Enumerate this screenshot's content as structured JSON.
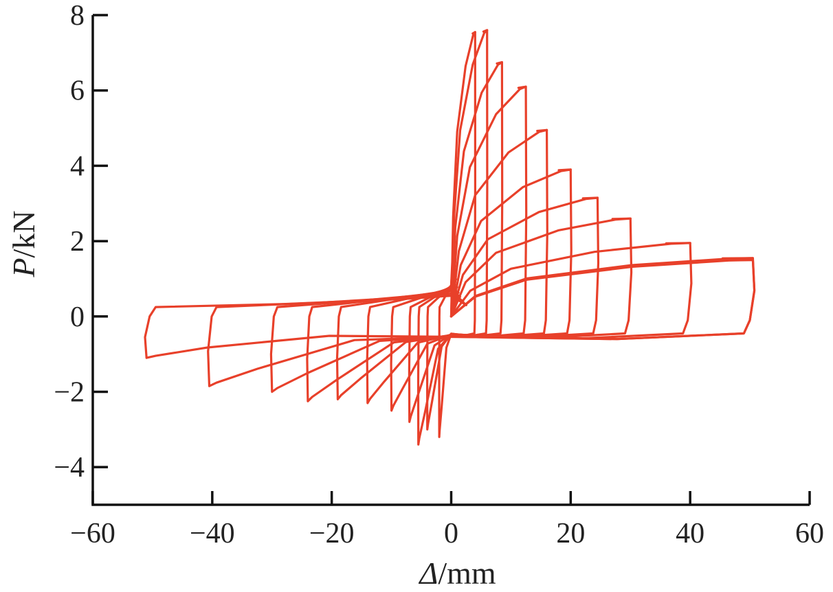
{
  "chart_data": {
    "type": "line",
    "xlabel_symbol": "Δ",
    "xlabel_unit": "/mm",
    "ylabel_symbol": "P",
    "ylabel_unit": "/kN",
    "xlim": [
      -60,
      60
    ],
    "ylim": [
      -5,
      8
    ],
    "xticks": [
      -60,
      -40,
      -20,
      0,
      20,
      40,
      60
    ],
    "yticks": [
      -4,
      -2,
      0,
      2,
      4,
      6,
      8
    ],
    "xtick_labels": [
      "−60",
      "−40",
      "−20",
      "0",
      "20",
      "40",
      "60"
    ],
    "ytick_labels": [
      "−4",
      "−2",
      "0",
      "2",
      "4",
      "6",
      "8"
    ],
    "grid": false,
    "legend": "none",
    "series": [
      {
        "color": "#e8402a",
        "description_of_shape": "cyclic hysteresis loops",
        "cycles": [
          {
            "dmax": 4.0,
            "pmax": 7.55,
            "dmin": -2.0,
            "pmin": -3.2
          },
          {
            "dmax": 6.0,
            "pmax": 7.6,
            "dmin": -4.0,
            "pmin": -3.0
          },
          {
            "dmax": 8.5,
            "pmax": 6.75,
            "dmin": -5.5,
            "pmin": -3.4
          },
          {
            "dmax": 12.5,
            "pmax": 6.1,
            "dmin": -7.0,
            "pmin": -2.8
          },
          {
            "dmax": 16.0,
            "pmax": 4.95,
            "dmin": -10.0,
            "pmin": -2.5
          },
          {
            "dmax": 20.0,
            "pmax": 3.9,
            "dmin": -14.0,
            "pmin": -2.3
          },
          {
            "dmax": 24.5,
            "pmax": 3.15,
            "dmin": -19.0,
            "pmin": -2.2
          },
          {
            "dmax": 30.0,
            "pmax": 2.6,
            "dmin": -24.0,
            "pmin": -2.25
          },
          {
            "dmax": 40.0,
            "pmax": 1.95,
            "dmin": -30.0,
            "pmin": -2.0
          },
          {
            "dmax": 50.5,
            "pmax": 1.55,
            "dmin": -40.5,
            "pmin": -1.85
          },
          {
            "dmax": 50.5,
            "pmax": 1.5,
            "dmin": -51.0,
            "pmin": -1.1
          }
        ]
      }
    ]
  }
}
